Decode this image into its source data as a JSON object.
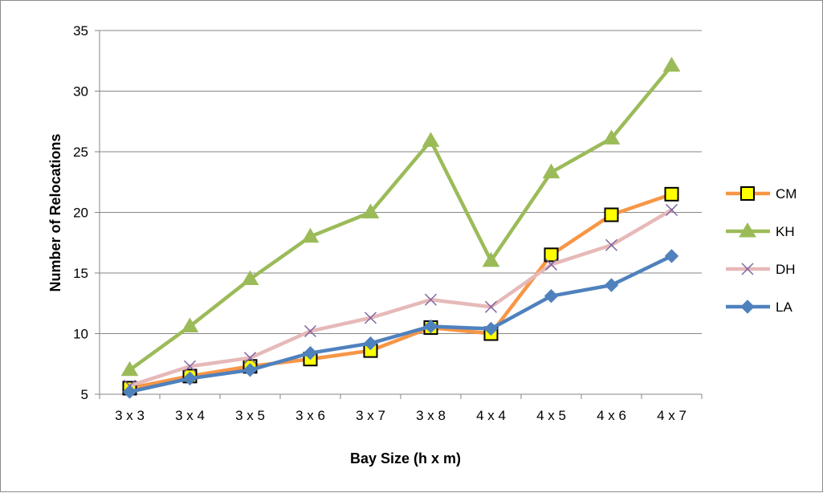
{
  "chart_data": {
    "type": "line",
    "title": "",
    "xlabel": "Bay Size (h x m)",
    "ylabel": "Number of Relocations",
    "categories": [
      "3 x 3",
      "3 x 4",
      "3 x 5",
      "3 x 6",
      "3 x 7",
      "3 x 8",
      "4 x 4",
      "4 x 5",
      "4 x 6",
      "4 x 7"
    ],
    "ylim": [
      5,
      35
    ],
    "yticks": [
      5,
      10,
      15,
      20,
      25,
      30,
      35
    ],
    "grid": "horizontal",
    "legend_position": "right",
    "series": [
      {
        "name": "CM",
        "color": "#f79646",
        "marker": "square",
        "marker_fill": "#ffff00",
        "marker_stroke": "#000000",
        "values": [
          5.5,
          6.5,
          7.3,
          7.9,
          8.6,
          10.5,
          10.0,
          16.5,
          19.8,
          21.5
        ]
      },
      {
        "name": "KH",
        "color": "#9bbb59",
        "marker": "triangle",
        "marker_fill": "#9bbb59",
        "marker_stroke": "#9bbb59",
        "values": [
          7.0,
          10.6,
          14.5,
          18.0,
          20.0,
          25.9,
          16.0,
          23.3,
          26.1,
          32.1
        ]
      },
      {
        "name": "DH",
        "color": "#e6b9b8",
        "marker": "x",
        "marker_fill": "none",
        "marker_stroke": "#8064a2",
        "values": [
          5.7,
          7.3,
          8.0,
          10.2,
          11.3,
          12.8,
          12.2,
          15.7,
          17.3,
          20.2
        ]
      },
      {
        "name": "LA",
        "color": "#4f81bd",
        "marker": "diamond",
        "marker_fill": "#4f81bd",
        "marker_stroke": "#4f81bd",
        "values": [
          5.2,
          6.3,
          7.0,
          8.4,
          9.2,
          10.6,
          10.4,
          13.1,
          14.0,
          16.4
        ]
      }
    ]
  }
}
